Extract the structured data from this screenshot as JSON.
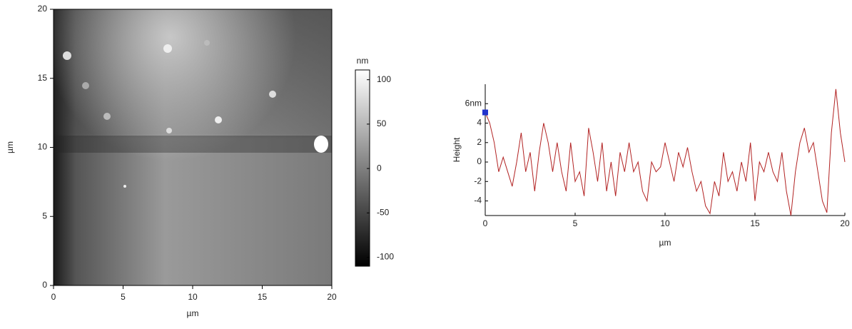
{
  "chart_data": [
    {
      "type": "image",
      "xlabel": "µm",
      "ylabel": "µm",
      "xlim": [
        0,
        20
      ],
      "ylim": [
        0,
        20
      ],
      "xticks": [
        0,
        5,
        10,
        15,
        20
      ],
      "yticks": [
        0,
        5,
        10,
        15,
        20
      ],
      "colorbar": {
        "label": "nm",
        "clim": [
          -110,
          111
        ],
        "ticks": [
          100,
          50,
          0,
          -50,
          -100
        ],
        "colors": [
          "#000000",
          "#ffffff"
        ]
      }
    },
    {
      "type": "line",
      "xlabel": "µm",
      "ylabel": "Height",
      "xlim": [
        0,
        20
      ],
      "ylim": [
        -5.5,
        8
      ],
      "xticks": [
        0,
        5,
        10,
        15,
        20
      ],
      "yticks": [
        {
          "value": 6,
          "label": "6nm"
        },
        4,
        2,
        0,
        -2,
        -4
      ],
      "x": [
        0,
        0.25,
        0.5,
        0.75,
        1,
        1.25,
        1.5,
        1.75,
        2,
        2.25,
        2.5,
        2.75,
        3,
        3.25,
        3.5,
        3.75,
        4,
        4.25,
        4.5,
        4.75,
        5,
        5.25,
        5.5,
        5.75,
        6,
        6.25,
        6.5,
        6.75,
        7,
        7.25,
        7.5,
        7.75,
        8,
        8.25,
        8.5,
        8.75,
        9,
        9.25,
        9.5,
        9.75,
        10,
        10.25,
        10.5,
        10.75,
        11,
        11.25,
        11.5,
        11.75,
        12,
        12.25,
        12.5,
        12.75,
        13,
        13.25,
        13.5,
        13.75,
        14,
        14.25,
        14.5,
        14.75,
        15,
        15.25,
        15.5,
        15.75,
        16,
        16.25,
        16.5,
        16.75,
        17,
        17.25,
        17.5,
        17.75,
        18,
        18.25,
        18.5,
        18.75,
        19,
        19.25,
        19.5,
        19.75,
        20
      ],
      "series": [
        {
          "color": "#b22222",
          "values": [
            5.1,
            4,
            2,
            -1,
            0.5,
            -1,
            -2.5,
            0,
            3,
            -1,
            1,
            -3,
            1,
            4,
            2,
            -1,
            2,
            -1,
            -3,
            2,
            -2,
            -1,
            -3.5,
            3.5,
            1,
            -2,
            2,
            -3,
            0,
            -3.5,
            1,
            -1,
            2,
            -1,
            0,
            -3,
            -4,
            0,
            -1,
            -0.5,
            2,
            0,
            -2,
            1,
            -0.5,
            1.5,
            -1,
            -3,
            -2,
            -4.5,
            -5.3,
            -2,
            -3.5,
            1,
            -2,
            -1,
            -3,
            0,
            -2,
            2,
            -4,
            0,
            -1,
            1,
            -1,
            -2,
            1,
            -3,
            -5.5,
            -1,
            2,
            3.5,
            1,
            2,
            -1,
            -4,
            -5.2,
            3,
            7.5,
            3,
            0
          ]
        }
      ],
      "cursor": {
        "x": 0,
        "y": 5.1,
        "color": "#2233cc"
      }
    }
  ]
}
